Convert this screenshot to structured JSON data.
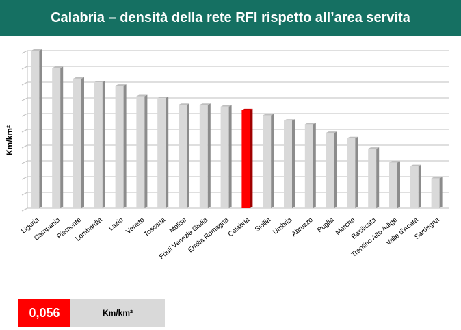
{
  "header": {
    "title": "Calabria – densità della rete RFI rispetto all’area servita"
  },
  "chart_data": {
    "type": "bar",
    "title": "Calabria – densità della rete RFI rispetto all’area servita",
    "xlabel": "",
    "ylabel": "Km/km²",
    "ylim": [
      0,
      0.09
    ],
    "grid": true,
    "highlight": "Calabria",
    "colors": {
      "bar": "#d9d9d9",
      "highlight": "#ff0000"
    },
    "categories": [
      "Liguria",
      "Campania",
      "Piemonte",
      "Lombardia",
      "Lazio",
      "Veneto",
      "Toscana",
      "Molise",
      "Friuli Venezia Giulia",
      "Emilia Romagna",
      "Calabria",
      "Sicilia",
      "Umbria",
      "Abruzzo",
      "Puglia",
      "Marche",
      "Basilicata",
      "Trentino Alto Adige",
      "Valle d'Aosta",
      "Sardegna"
    ],
    "values": [
      0.09,
      0.08,
      0.074,
      0.072,
      0.07,
      0.064,
      0.063,
      0.059,
      0.059,
      0.058,
      0.056,
      0.053,
      0.05,
      0.048,
      0.043,
      0.04,
      0.034,
      0.026,
      0.024,
      0.017
    ]
  },
  "summary": {
    "value": "0,056",
    "unit": "Km/km²"
  }
}
